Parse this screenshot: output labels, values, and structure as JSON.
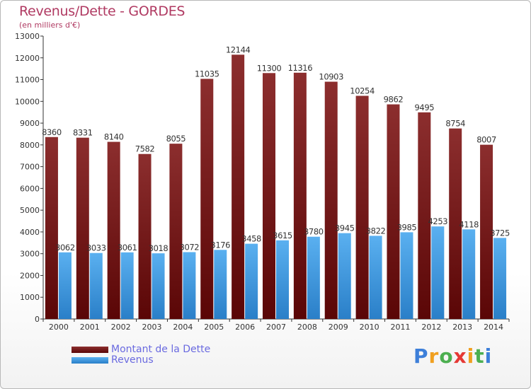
{
  "header": {
    "title": "Revenus/Dette - GORDES",
    "subtitle": "(en milliers d'€)"
  },
  "legend": {
    "items": [
      {
        "label": "Montant de la Dette",
        "color": "#7a1a1a"
      },
      {
        "label": "Revenus",
        "color": "#3d9ae6"
      }
    ]
  },
  "logo": {
    "letters": [
      "P",
      "r",
      "o",
      "x",
      "i",
      "t",
      "i"
    ],
    "colors": [
      "#3d7fd9",
      "#f0a020",
      "#4caf50",
      "#e53935",
      "#f0a020",
      "#4caf50",
      "#3d7fd9"
    ]
  },
  "chart_data": {
    "type": "bar",
    "categories": [
      "2000",
      "2001",
      "2002",
      "2003",
      "2004",
      "2005",
      "2006",
      "2007",
      "2008",
      "2009",
      "2010",
      "2011",
      "2012",
      "2013",
      "2014"
    ],
    "series": [
      {
        "name": "Montant de la Dette",
        "color": "#7a1a1a",
        "values": [
          8360,
          8331,
          8140,
          7582,
          8055,
          11035,
          12144,
          11300,
          11316,
          10903,
          10254,
          9862,
          9495,
          8754,
          8007
        ]
      },
      {
        "name": "Revenus",
        "color": "#3d9ae6",
        "values": [
          3062,
          3033,
          3061,
          3018,
          3072,
          3176,
          3458,
          3615,
          3780,
          3945,
          3822,
          3985,
          4253,
          4118,
          3725
        ]
      }
    ],
    "title": "Revenus/Dette - GORDES",
    "ylabel": "(en milliers d'€)",
    "ylim": [
      0,
      13000
    ],
    "yticks": [
      0,
      1000,
      2000,
      3000,
      4000,
      5000,
      6000,
      7000,
      8000,
      9000,
      10000,
      11000,
      12000,
      13000
    ],
    "grid": false,
    "legend_position": "bottom-left"
  }
}
